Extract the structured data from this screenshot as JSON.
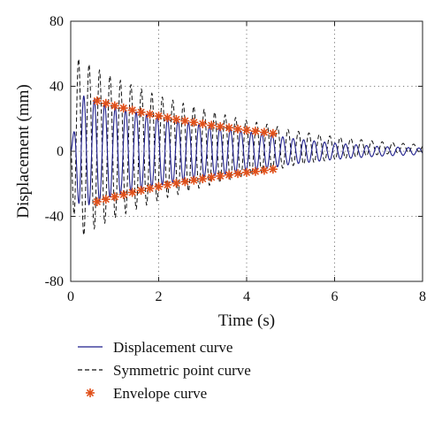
{
  "chart_data": {
    "type": "line",
    "title": "",
    "xlabel": "Time (s)",
    "ylabel": "Displacement (mm)",
    "xlim": [
      0,
      8
    ],
    "ylim": [
      -80,
      80
    ],
    "xticks": [
      0,
      2,
      4,
      6,
      8
    ],
    "yticks": [
      80,
      40,
      0,
      -40,
      -80
    ],
    "xtick_labels": [
      "0",
      "2",
      "4",
      "6",
      "8"
    ],
    "ytick_labels": [
      "80",
      "40",
      "0",
      "-40",
      "-80"
    ],
    "grid": "dotted",
    "legend_position": "below",
    "series": [
      {
        "name": "Displacement curve",
        "style": "solid",
        "color": "#1f1f8c",
        "frequency_hz": 4.2,
        "amplitude_peaks": {
          "t": [
            0.0,
            0.2,
            0.6,
            1.0,
            2.0,
            3.0,
            4.0,
            4.6,
            5.0,
            6.0,
            7.0,
            8.0
          ],
          "y": [
            0,
            35,
            31,
            27,
            21,
            16,
            12,
            10,
            8,
            5,
            3,
            2
          ]
        }
      },
      {
        "name": "Symmetric point curve",
        "style": "dashed",
        "color": "#111111",
        "frequency_hz": 4.2,
        "offset": 2,
        "amplitude_peaks": {
          "t": [
            0.0,
            0.1,
            0.5,
            1.0,
            2.0,
            3.0,
            4.0,
            4.6,
            5.0,
            6.0,
            7.0,
            8.0
          ],
          "y": [
            0,
            57,
            50,
            43,
            32,
            24,
            17,
            14,
            11,
            7,
            4,
            2
          ]
        }
      },
      {
        "name": "Envelope curve",
        "style": "markers",
        "marker": "asterisk",
        "color": "#e0501a",
        "x": [
          0.6,
          0.8,
          1.0,
          1.2,
          1.4,
          1.6,
          1.8,
          2.0,
          2.2,
          2.4,
          2.6,
          2.8,
          3.0,
          3.2,
          3.4,
          3.6,
          3.8,
          4.0,
          4.2,
          4.4,
          4.6
        ],
        "upper": [
          31,
          29.5,
          28,
          26.6,
          25.3,
          24,
          22.8,
          21.7,
          20.6,
          19.6,
          18.7,
          17.8,
          16.9,
          16,
          15.2,
          14.5,
          13.7,
          13,
          12.4,
          11.7,
          11
        ],
        "lower": [
          -31,
          -29.5,
          -28,
          -26.6,
          -25.3,
          -24,
          -22.8,
          -21.7,
          -20.6,
          -19.6,
          -18.7,
          -17.8,
          -16.9,
          -16,
          -15.2,
          -14.5,
          -13.7,
          -13,
          -12.4,
          -11.7,
          -11
        ]
      }
    ]
  }
}
